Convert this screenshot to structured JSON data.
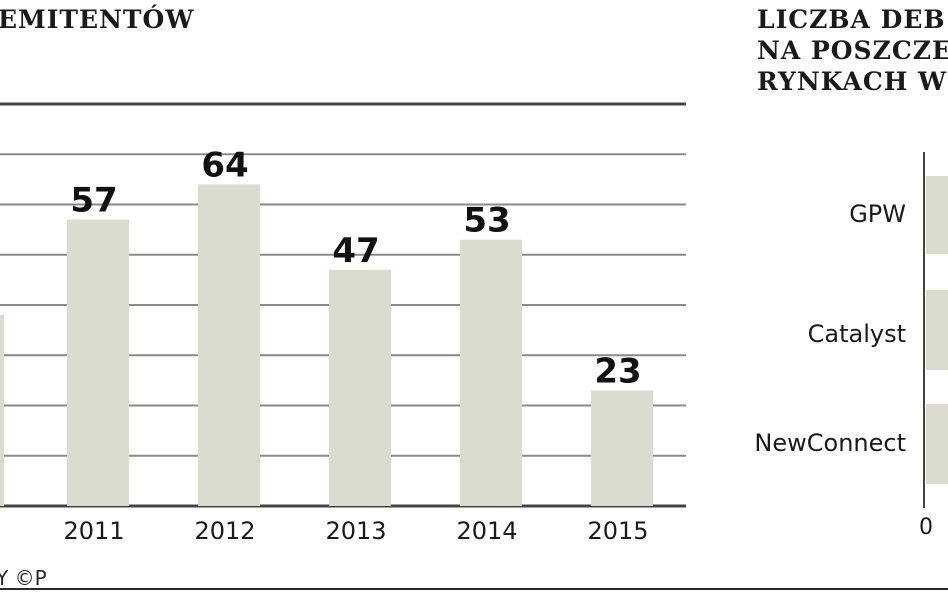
{
  "left_title": "EMITENTÓW",
  "right_title_lines": [
    "LICZBA DEB",
    "NA POSZCZE",
    "RYNKACH W"
  ],
  "credit": "Y ©P",
  "chart_data": [
    {
      "type": "bar",
      "title": "EMITENTÓW",
      "categories": [
        "2011",
        "2012",
        "2013",
        "2014",
        "2015"
      ],
      "values": [
        57,
        64,
        47,
        53,
        23
      ],
      "ylim": [
        0,
        80
      ],
      "grid": true,
      "bar_color": "#dcdbd0",
      "label_color": "#111111"
    },
    {
      "type": "bar",
      "orientation": "horizontal",
      "title": "LICZBA DEB NA POSZCZE RYNKACH W",
      "categories": [
        "GPW",
        "Catalyst",
        "NewConnect"
      ],
      "x_tick_labels": [
        "0"
      ],
      "bar_color": "#dcdbd0"
    }
  ]
}
